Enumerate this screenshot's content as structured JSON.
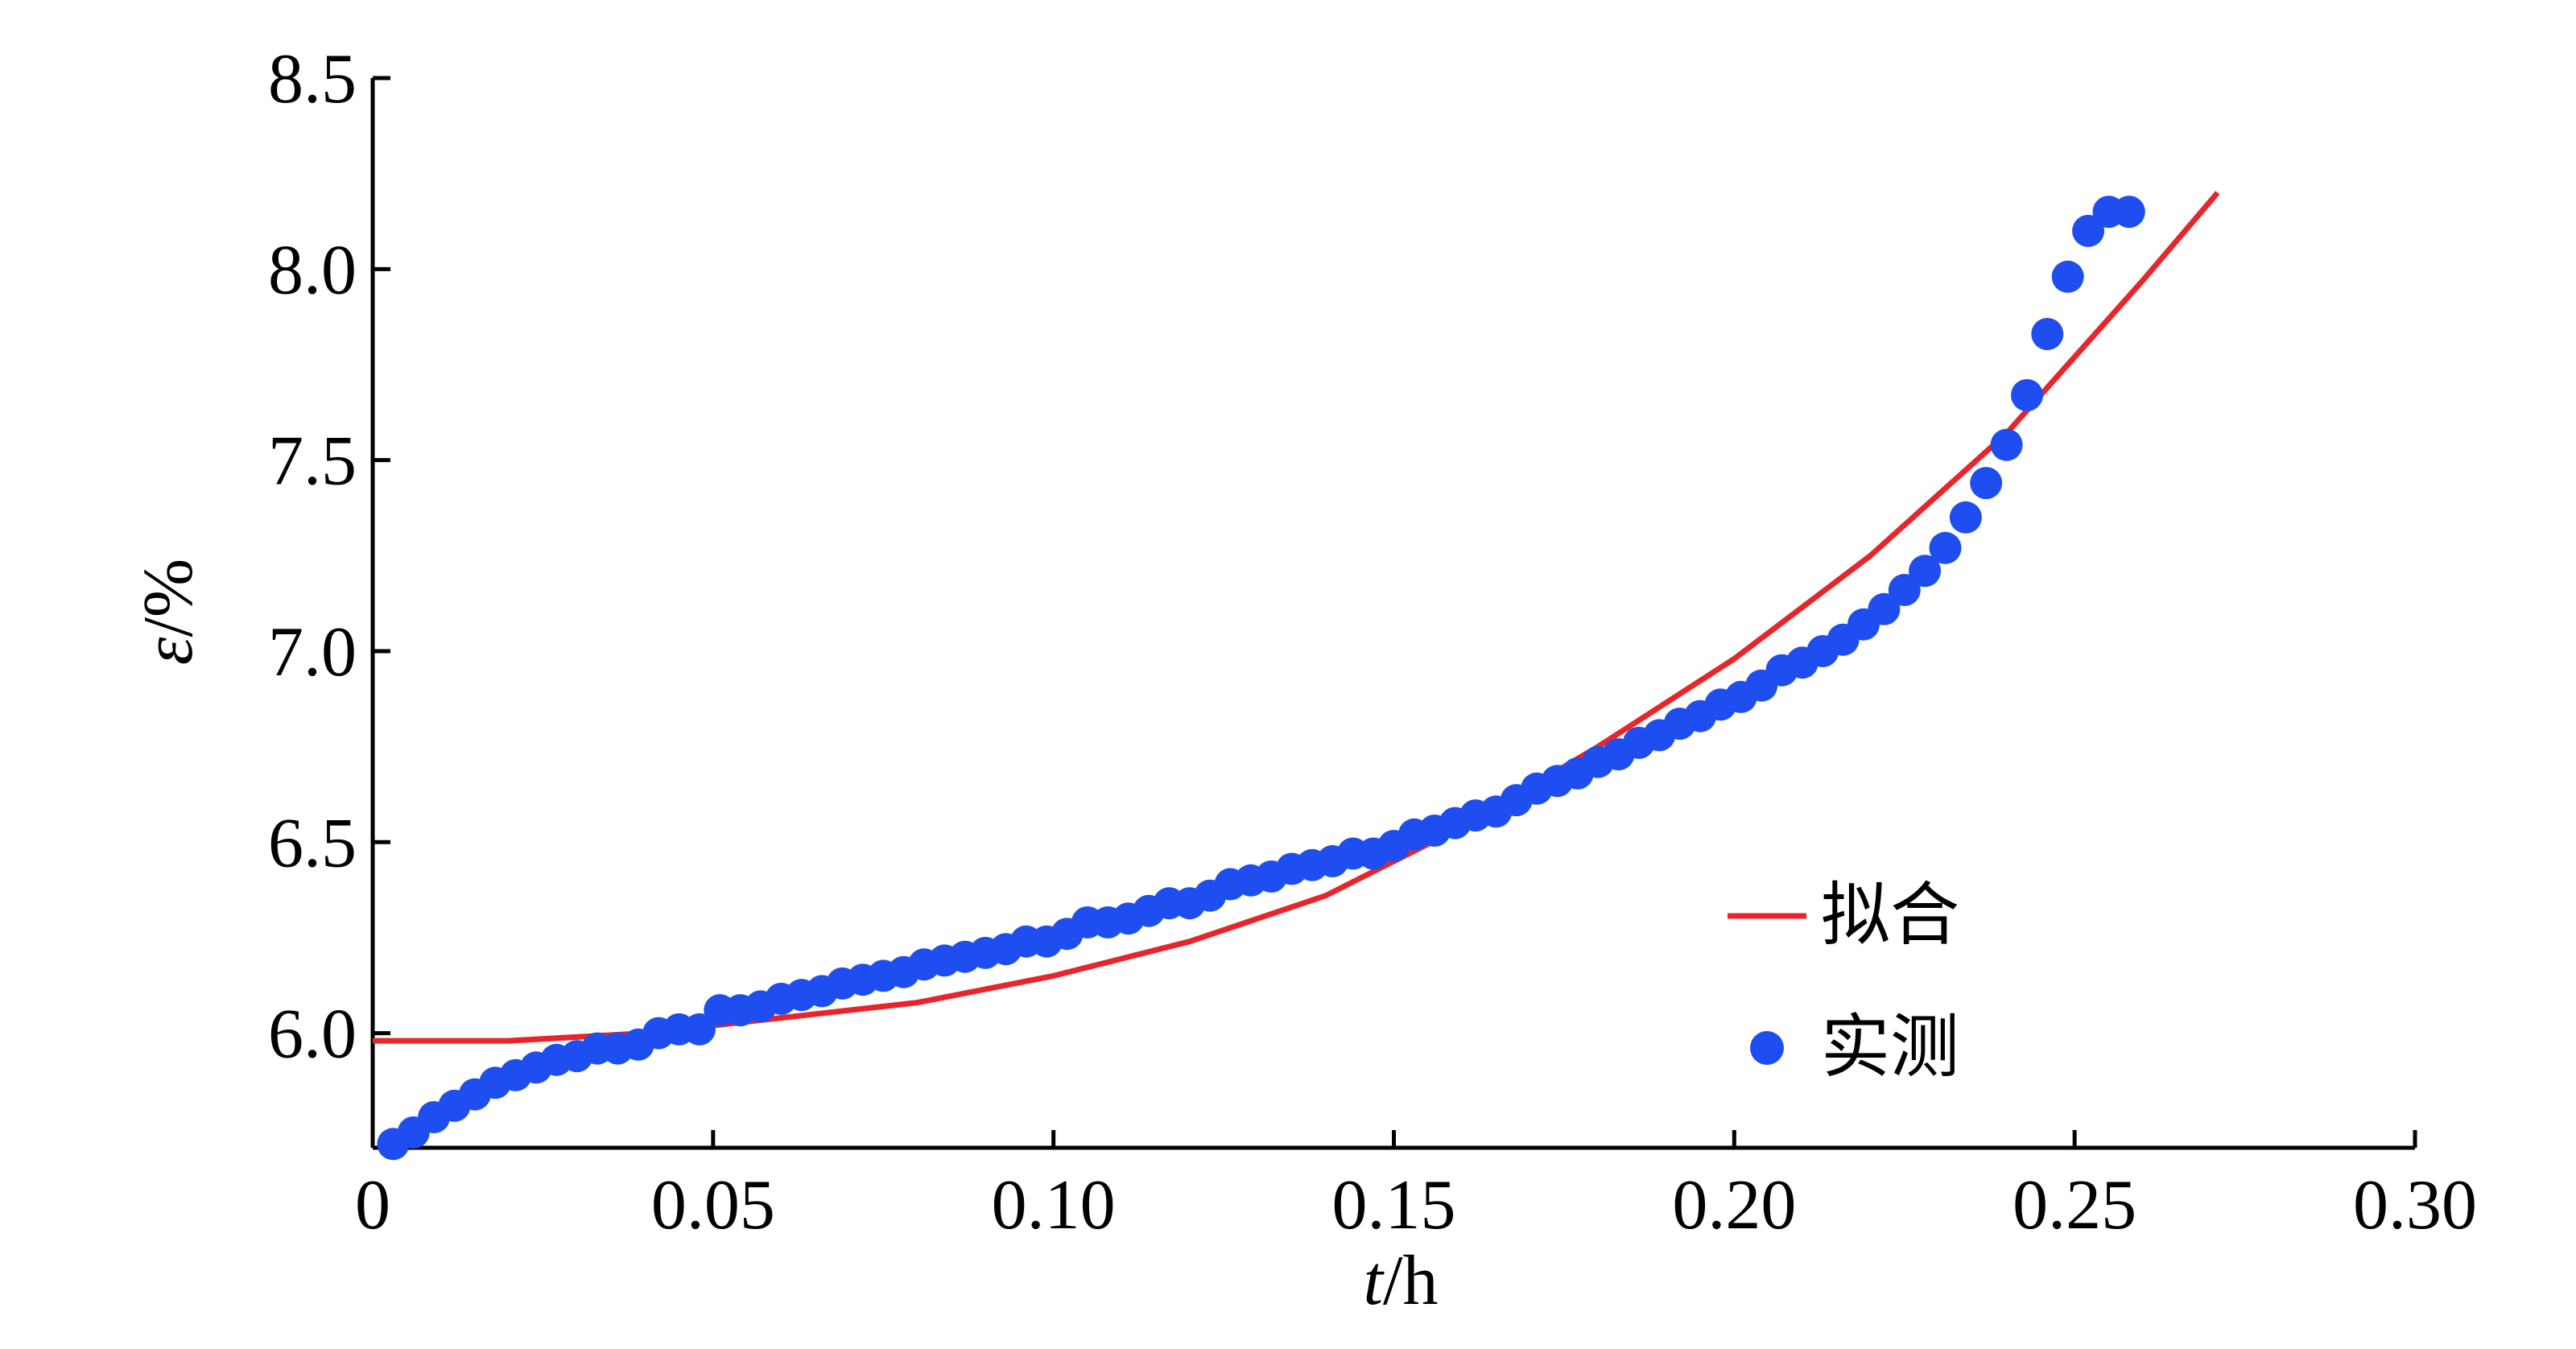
{
  "chart_data": {
    "type": "line",
    "xlabel": {
      "var": "t",
      "unit": "/h"
    },
    "ylabel": {
      "var": "ε",
      "unit": "/%"
    },
    "xlim": [
      0,
      0.3
    ],
    "ylim": [
      5.7,
      8.5
    ],
    "xticks": [
      "0",
      "0.05",
      "0.10",
      "0.15",
      "0.20",
      "0.25",
      "0.30"
    ],
    "xtick_values": [
      0,
      0.05,
      0.1,
      0.15,
      0.2,
      0.25,
      0.3
    ],
    "yticks": [
      "6.0",
      "6.5",
      "7.0",
      "7.5",
      "8.0",
      "8.5"
    ],
    "ytick_values": [
      6.0,
      6.5,
      7.0,
      7.5,
      8.0,
      8.5
    ],
    "grid": false,
    "legend_position": "bottom-right",
    "series": [
      {
        "name": "拟合",
        "kind": "line",
        "color": "#e8252a",
        "x": [
          0.0,
          0.02,
          0.04,
          0.06,
          0.08,
          0.1,
          0.12,
          0.14,
          0.16,
          0.18,
          0.2,
          0.22,
          0.24,
          0.26,
          0.271
        ],
        "y": [
          5.98,
          5.98,
          6.0,
          6.04,
          6.08,
          6.15,
          6.24,
          6.36,
          6.54,
          6.75,
          6.98,
          7.25,
          7.57,
          7.97,
          8.2
        ]
      },
      {
        "name": "实测",
        "kind": "scatter",
        "color": "#1f4ef0",
        "x": [
          0.003,
          0.006,
          0.009,
          0.012,
          0.015,
          0.018,
          0.021,
          0.024,
          0.027,
          0.03,
          0.033,
          0.036,
          0.039,
          0.042,
          0.045,
          0.048,
          0.051,
          0.054,
          0.057,
          0.06,
          0.063,
          0.066,
          0.069,
          0.072,
          0.075,
          0.078,
          0.081,
          0.084,
          0.087,
          0.09,
          0.093,
          0.096,
          0.099,
          0.102,
          0.105,
          0.108,
          0.111,
          0.114,
          0.117,
          0.12,
          0.123,
          0.126,
          0.129,
          0.132,
          0.135,
          0.138,
          0.141,
          0.144,
          0.147,
          0.15,
          0.153,
          0.156,
          0.159,
          0.162,
          0.165,
          0.168,
          0.171,
          0.174,
          0.177,
          0.18,
          0.183,
          0.186,
          0.189,
          0.192,
          0.195,
          0.198,
          0.201,
          0.204,
          0.207,
          0.21,
          0.213,
          0.216,
          0.219,
          0.222,
          0.225,
          0.228,
          0.231,
          0.234,
          0.237,
          0.24,
          0.243,
          0.246,
          0.249,
          0.252,
          0.255,
          0.258
        ],
        "y": [
          5.71,
          5.74,
          5.78,
          5.81,
          5.84,
          5.87,
          5.89,
          5.91,
          5.93,
          5.94,
          5.96,
          5.96,
          5.97,
          6.0,
          6.01,
          6.01,
          6.06,
          6.06,
          6.07,
          6.09,
          6.1,
          6.11,
          6.13,
          6.14,
          6.15,
          6.16,
          6.18,
          6.19,
          6.2,
          6.21,
          6.22,
          6.24,
          6.24,
          6.26,
          6.29,
          6.29,
          6.3,
          6.32,
          6.34,
          6.34,
          6.36,
          6.39,
          6.4,
          6.41,
          6.43,
          6.44,
          6.45,
          6.47,
          6.47,
          6.49,
          6.52,
          6.53,
          6.55,
          6.57,
          6.58,
          6.61,
          6.64,
          6.66,
          6.68,
          6.71,
          6.73,
          6.76,
          6.78,
          6.81,
          6.83,
          6.86,
          6.88,
          6.91,
          6.95,
          6.97,
          7.0,
          7.03,
          7.07,
          7.11,
          7.16,
          7.21,
          7.27,
          7.35,
          7.44,
          7.54,
          7.67,
          7.83,
          7.98,
          8.1,
          8.15,
          8.15
        ]
      }
    ]
  }
}
